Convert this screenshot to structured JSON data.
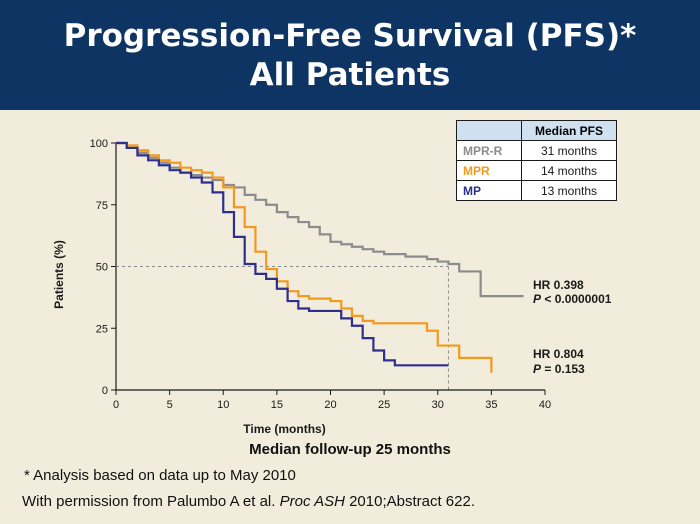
{
  "title_line1": "Progression-Free Survival (PFS)*",
  "title_line2": "All Patients",
  "chart_data": {
    "type": "line",
    "xlabel": "Time (months)",
    "ylabel": "Patients (%)",
    "xlim": [
      0,
      40
    ],
    "ylim": [
      0,
      100
    ],
    "xticks": [
      0,
      5,
      10,
      15,
      20,
      25,
      30,
      35,
      40
    ],
    "yticks": [
      0,
      25,
      50,
      75,
      100
    ],
    "reference_line_y": 50,
    "series": [
      {
        "name": "MPR-R",
        "color": "#8c8c8c",
        "x": [
          0,
          1,
          2,
          3,
          4,
          5,
          6,
          7,
          8,
          9,
          10,
          11,
          12,
          13,
          14,
          15,
          16,
          17,
          18,
          19,
          20,
          21,
          22,
          23,
          24,
          25,
          26,
          27,
          28,
          29,
          30,
          31,
          32,
          33,
          34,
          35,
          36,
          37,
          38
        ],
        "y": [
          100,
          98,
          96,
          94,
          92,
          90,
          88,
          87,
          86,
          85,
          83,
          82,
          79,
          77,
          75,
          72,
          70,
          68,
          66,
          63,
          60,
          59,
          58,
          57,
          56,
          55,
          55,
          54,
          54,
          53,
          52,
          51,
          48,
          48,
          38,
          38,
          38,
          38,
          38
        ]
      },
      {
        "name": "MPR",
        "color": "#f39a1d",
        "x": [
          0,
          1,
          2,
          3,
          4,
          5,
          6,
          7,
          8,
          9,
          10,
          11,
          12,
          13,
          14,
          15,
          16,
          17,
          18,
          19,
          20,
          21,
          22,
          23,
          24,
          25,
          26,
          27,
          28,
          29,
          30,
          31,
          32,
          33,
          34,
          35
        ],
        "y": [
          100,
          99,
          97,
          95,
          93,
          92,
          90,
          89,
          88,
          86,
          82,
          74,
          66,
          56,
          49,
          44,
          40,
          38,
          37,
          37,
          36,
          33,
          30,
          28,
          27,
          27,
          27,
          27,
          27,
          24,
          18,
          18,
          13,
          13,
          13,
          7
        ]
      },
      {
        "name": "MP",
        "color": "#2d2f8e",
        "x": [
          0,
          1,
          2,
          3,
          4,
          5,
          6,
          7,
          8,
          9,
          10,
          11,
          12,
          13,
          14,
          15,
          16,
          17,
          18,
          19,
          20,
          21,
          22,
          23,
          24,
          25,
          26,
          27,
          28,
          29,
          30,
          31
        ],
        "y": [
          100,
          98,
          95,
          93,
          91,
          89,
          88,
          86,
          84,
          80,
          72,
          62,
          51,
          47,
          45,
          41,
          36,
          33,
          32,
          32,
          32,
          29,
          26,
          21,
          16,
          12,
          10,
          10,
          10,
          10,
          10,
          10
        ]
      }
    ]
  },
  "legend": {
    "header": "Median PFS",
    "rows": [
      {
        "name": "MPR-R",
        "value": "31 months",
        "color": "#8c8c8c"
      },
      {
        "name": "MPR",
        "value": "14 months",
        "color": "#f39a1d"
      },
      {
        "name": "MP",
        "value": "13 months",
        "color": "#2d2f8e"
      }
    ]
  },
  "annotations": {
    "hr1_label": "HR 0.398",
    "p1_label_p": "P",
    "p1_label_rest": " < 0.0000001",
    "hr2_label": "HR 0.804",
    "p2_label_p": "P",
    "p2_label_rest": " = 0.153"
  },
  "followup": "Median follow-up 25 months",
  "footnote": "* Analysis based on data up to May 2010",
  "citation_prefix": "With permission from Palumbo A et al. ",
  "citation_journal": "Proc ASH",
  "citation_suffix": " 2010;Abstract 622."
}
